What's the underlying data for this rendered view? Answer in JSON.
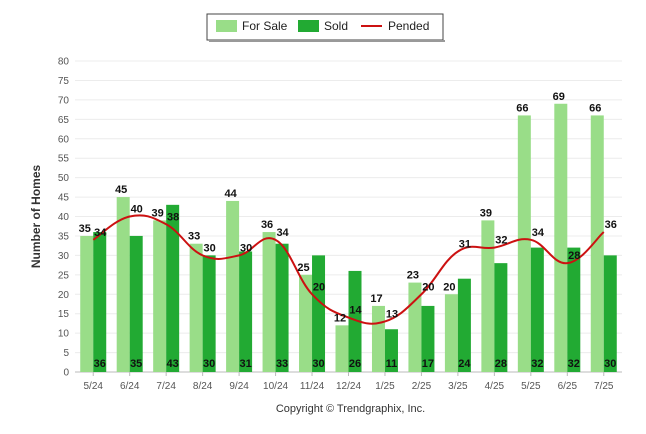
{
  "chart_data": {
    "type": "bar",
    "categories": [
      "5/24",
      "6/24",
      "7/24",
      "8/24",
      "9/24",
      "10/24",
      "11/24",
      "12/24",
      "1/25",
      "2/25",
      "3/25",
      "4/25",
      "5/25",
      "6/25",
      "7/25"
    ],
    "series": [
      {
        "name": "For Sale",
        "type": "bar",
        "color": "#99dd88",
        "values": [
          35,
          45,
          39,
          33,
          44,
          36,
          25,
          12,
          17,
          23,
          20,
          39,
          66,
          69,
          66
        ]
      },
      {
        "name": "Sold",
        "type": "bar",
        "color": "#22aa33",
        "values": [
          36,
          35,
          43,
          30,
          31,
          33,
          30,
          26,
          11,
          17,
          24,
          28,
          32,
          32,
          30
        ]
      },
      {
        "name": "Pended",
        "type": "line",
        "color": "#cc1111",
        "values": [
          34,
          40,
          38,
          30,
          30,
          34,
          20,
          14,
          13,
          20,
          31,
          32,
          34,
          28,
          36
        ]
      }
    ],
    "title": "",
    "xlabel": "",
    "ylabel": "Number of Homes",
    "ylim": [
      0,
      80
    ],
    "yticks": [
      0,
      5,
      10,
      15,
      20,
      25,
      30,
      35,
      40,
      45,
      50,
      55,
      60,
      65,
      70,
      75,
      80
    ],
    "grid": true,
    "legend": "top-center"
  },
  "footer": "Copyright © Trendgraphix, Inc."
}
